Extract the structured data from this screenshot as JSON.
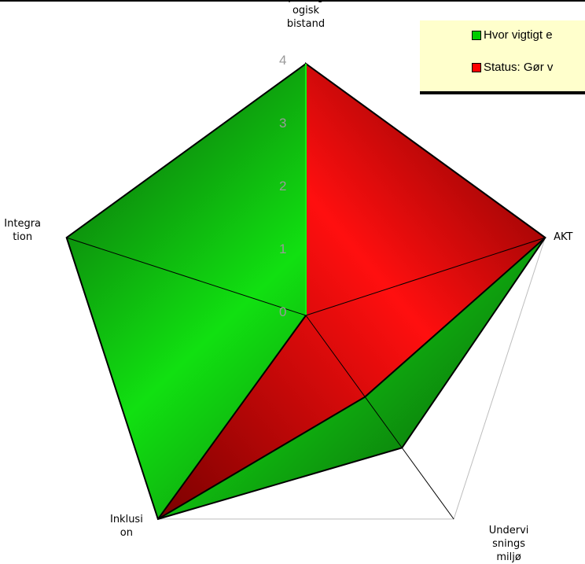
{
  "chart_data": {
    "type": "radar",
    "categories": [
      "pædag ogisk bistand",
      "AKT",
      "Undervi snings miljø",
      "Inklusi on",
      "Integra tion"
    ],
    "category_display": [
      "pædag\nogisk\nbistand",
      "AKT",
      "Undervi\nsnings\nmiljø",
      "Inklusi\non",
      "Integra\ntion"
    ],
    "rlim": [
      0,
      4
    ],
    "ticks": [
      "0",
      "1",
      "2",
      "3",
      "4"
    ],
    "series": [
      {
        "name": "Hvor vigtigt e",
        "color": "#00cc00",
        "values": [
          4,
          4,
          2.6,
          4,
          4
        ]
      },
      {
        "name": "Status: Gør v",
        "color": "#ff0000",
        "values": [
          4,
          4,
          1.6,
          4,
          0
        ]
      }
    ],
    "legend_position": "top-right"
  }
}
